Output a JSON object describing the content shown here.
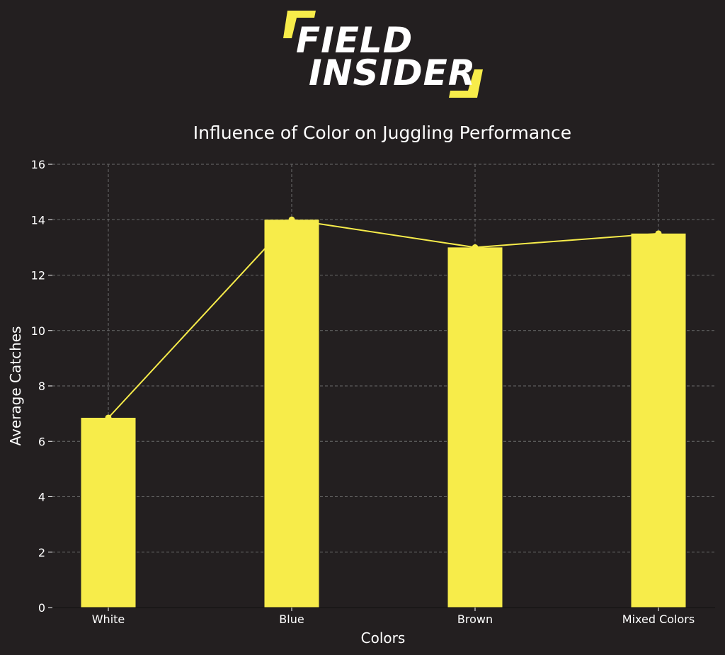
{
  "logo": {
    "line1": "FIELD",
    "line2": "INSIDER"
  },
  "colors": {
    "background": "#231f20",
    "bar": "#f7ec4a",
    "line": "#f7ec4a",
    "text": "#ffffff",
    "grid": "#6b6b6b"
  },
  "chart_data": {
    "type": "bar",
    "title": "Influence of Color on Juggling Performance",
    "xlabel": "Colors",
    "ylabel": "Average Catches",
    "categories": [
      "White",
      "Blue",
      "Brown",
      "Mixed Colors"
    ],
    "values": [
      6.85,
      14.0,
      13.0,
      13.5
    ],
    "overlay_line": true,
    "ylim": [
      0,
      16
    ],
    "yticks": [
      0,
      2,
      4,
      6,
      8,
      10,
      12,
      14,
      16
    ],
    "grid": true,
    "legend": "none"
  }
}
